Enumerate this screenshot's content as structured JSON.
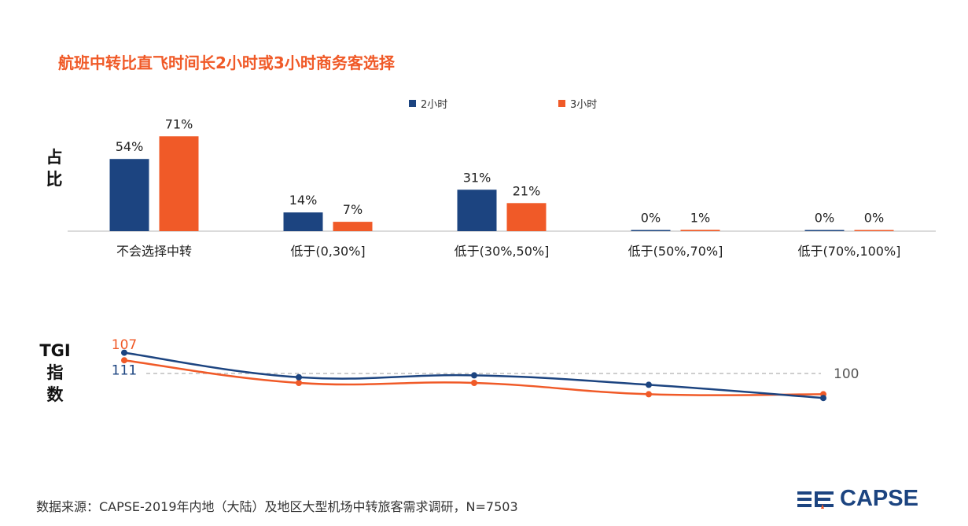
{
  "title": "航班中转比直飞时间长2小时或3小时商务客选择",
  "side_labels": {
    "bar": "占\n比",
    "line": "TGI\n指\n数"
  },
  "footer": "数据来源：CAPSE-2019年内地（大陆）及地区大型机场中转旅客需求调研，N=7503",
  "logo": "CAPSE",
  "colors": {
    "series1": "#1c4480",
    "series2": "#f05a28",
    "axis": "#cfcfcf",
    "reference": "#bdbdbd"
  },
  "chart_data": [
    {
      "type": "bar",
      "categories": [
        "不会选择中转",
        "低于(0,30%]",
        "低于(30%,50%]",
        "低于(50%,70%]",
        "低于(70%,100%]"
      ],
      "series": [
        {
          "name": "2小时",
          "values": [
            54,
            14,
            31,
            0,
            0
          ],
          "labels": [
            "54%",
            "14%",
            "31%",
            "0%",
            "0%"
          ]
        },
        {
          "name": "3小时",
          "values": [
            71,
            7,
            21,
            1,
            0
          ],
          "labels": [
            "71%",
            "7%",
            "21%",
            "1%",
            "0%"
          ]
        }
      ],
      "ylim": [
        0,
        100
      ]
    },
    {
      "type": "line",
      "categories": [
        "不会选择中转",
        "低于(0,30%]",
        "低于(30%,50%]",
        "低于(50%,70%]",
        "低于(70%,100%]"
      ],
      "series": [
        {
          "name": "2小时",
          "values": [
            111,
            98,
            99,
            94,
            87
          ]
        },
        {
          "name": "3小时",
          "values": [
            107,
            95,
            95,
            89,
            89
          ]
        }
      ],
      "point_labels": {
        "2小时": "111",
        "3小时": "107"
      },
      "reference_line": {
        "value": 100,
        "label": "100"
      }
    }
  ]
}
